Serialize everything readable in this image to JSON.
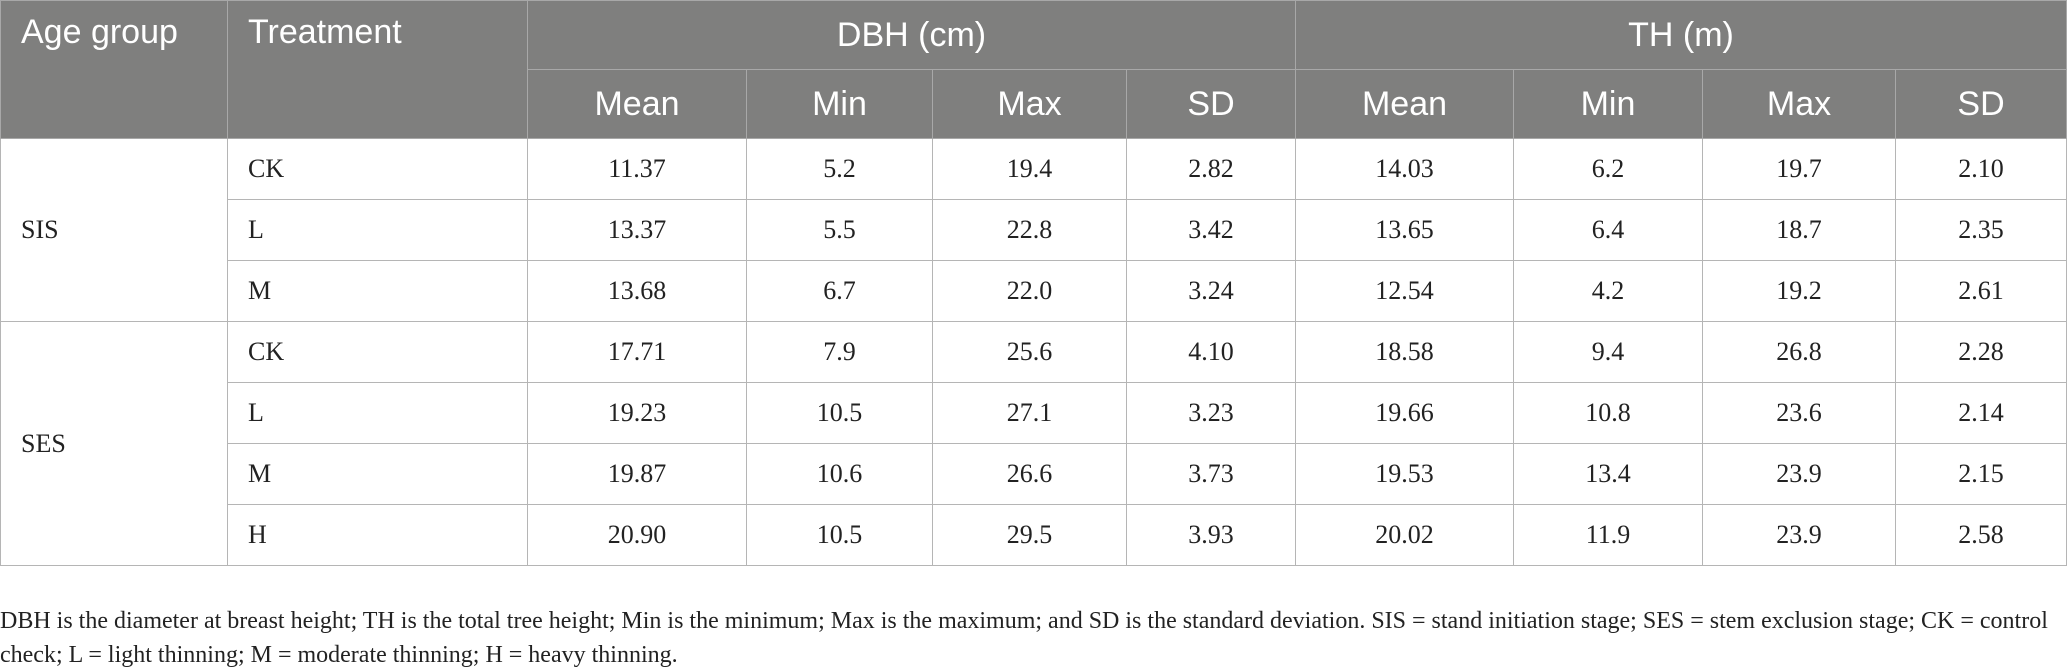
{
  "headers": {
    "age_group": "Age group",
    "treatment": "Treatment",
    "dbh": "DBH (cm)",
    "th": "TH (m)",
    "mean": "Mean",
    "min": "Min",
    "max": "Max",
    "sd": "SD"
  },
  "groups": [
    {
      "name": "SIS",
      "rows": [
        {
          "treatment": "CK",
          "dbh": [
            "11.37",
            "5.2",
            "19.4",
            "2.82"
          ],
          "th": [
            "14.03",
            "6.2",
            "19.7",
            "2.10"
          ]
        },
        {
          "treatment": "L",
          "dbh": [
            "13.37",
            "5.5",
            "22.8",
            "3.42"
          ],
          "th": [
            "13.65",
            "6.4",
            "18.7",
            "2.35"
          ]
        },
        {
          "treatment": "M",
          "dbh": [
            "13.68",
            "6.7",
            "22.0",
            "3.24"
          ],
          "th": [
            "12.54",
            "4.2",
            "19.2",
            "2.61"
          ]
        }
      ]
    },
    {
      "name": "SES",
      "rows": [
        {
          "treatment": "CK",
          "dbh": [
            "17.71",
            "7.9",
            "25.6",
            "4.10"
          ],
          "th": [
            "18.58",
            "9.4",
            "26.8",
            "2.28"
          ]
        },
        {
          "treatment": "L",
          "dbh": [
            "19.23",
            "10.5",
            "27.1",
            "3.23"
          ],
          "th": [
            "19.66",
            "10.8",
            "23.6",
            "2.14"
          ]
        },
        {
          "treatment": "M",
          "dbh": [
            "19.87",
            "10.6",
            "26.6",
            "3.73"
          ],
          "th": [
            "19.53",
            "13.4",
            "23.9",
            "2.15"
          ]
        },
        {
          "treatment": "H",
          "dbh": [
            "20.90",
            "10.5",
            "29.5",
            "3.93"
          ],
          "th": [
            "20.02",
            "11.9",
            "23.9",
            "2.58"
          ]
        }
      ]
    }
  ],
  "footnote": "DBH is the diameter at breast height; TH is the total tree height; Min is the minimum; Max is the maximum; and SD is the standard deviation. SIS = stand initiation stage; SES = stem exclusion stage; CK = control check; L = light thinning; M = moderate thinning; H = heavy thinning."
}
